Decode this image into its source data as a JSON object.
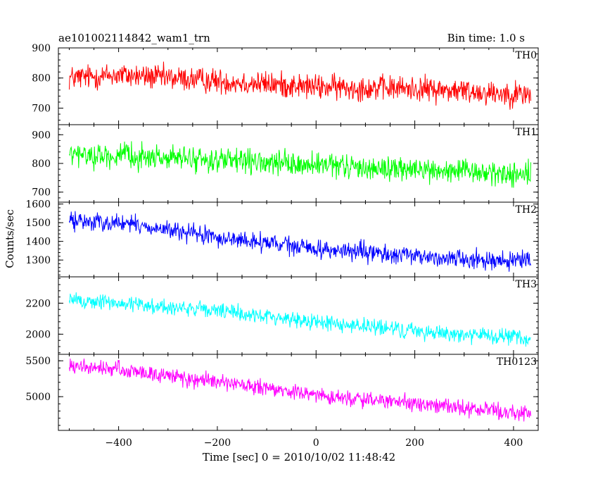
{
  "header": {
    "title": "ae101002114842_wam1_trn",
    "bin_time": "Bin time: 1.0 s"
  },
  "chart_data": {
    "type": "line",
    "title": "ae101002114842_wam1_trn",
    "subtitle": "Bin time: 1.0 s",
    "xlabel": "Time [sec] 0 = 2010/10/02 11:48:42",
    "ylabel": "Counts/sec",
    "xlim": [
      -522,
      450
    ],
    "x_range": [
      -500,
      435
    ],
    "x_ticks": [
      -400,
      -200,
      0,
      200,
      400
    ],
    "x_tick_labels": [
      "−400",
      "−200",
      "0",
      "200",
      "400"
    ],
    "grid": false,
    "panels": [
      {
        "name": "TH0",
        "color": "#ff0000",
        "ylim": [
          645,
          900
        ],
        "y_ticks": [
          700,
          800,
          900
        ],
        "trend": [
          [
            -500,
            800
          ],
          [
            -400,
            810
          ],
          [
            -200,
            790
          ],
          [
            0,
            770
          ],
          [
            200,
            765
          ],
          [
            435,
            745
          ]
        ],
        "noise": 36
      },
      {
        "name": "TH1",
        "color": "#00ff00",
        "ylim": [
          665,
          935
        ],
        "y_ticks": [
          700,
          800,
          900
        ],
        "trend": [
          [
            -500,
            830
          ],
          [
            -300,
            820
          ],
          [
            -100,
            800
          ],
          [
            100,
            785
          ],
          [
            300,
            770
          ],
          [
            435,
            760
          ]
        ],
        "noise": 36
      },
      {
        "name": "TH2",
        "color": "#0000ff",
        "ylim": [
          1210,
          1610
        ],
        "y_ticks": [
          1300,
          1400,
          1500,
          1600
        ],
        "trend": [
          [
            -500,
            1510
          ],
          [
            -400,
            1500
          ],
          [
            -200,
            1420
          ],
          [
            0,
            1360
          ],
          [
            200,
            1320
          ],
          [
            435,
            1290
          ]
        ],
        "noise": 42
      },
      {
        "name": "TH3",
        "color": "#00ffff",
        "ylim": [
          1870,
          2370
        ],
        "y_ticks": [
          2000,
          2200
        ],
        "trend": [
          [
            -500,
            2220
          ],
          [
            -400,
            2200
          ],
          [
            -200,
            2150
          ],
          [
            0,
            2080
          ],
          [
            200,
            2020
          ],
          [
            435,
            1970
          ]
        ],
        "noise": 45
      },
      {
        "name": "TH0123",
        "color": "#ff00ff",
        "ylim": [
          4530,
          5590
        ],
        "y_ticks": [
          5000,
          5500
        ],
        "trend": [
          [
            -500,
            5420
          ],
          [
            -400,
            5380
          ],
          [
            -200,
            5200
          ],
          [
            0,
            5020
          ],
          [
            200,
            4900
          ],
          [
            435,
            4760
          ]
        ],
        "noise": 95
      }
    ]
  }
}
